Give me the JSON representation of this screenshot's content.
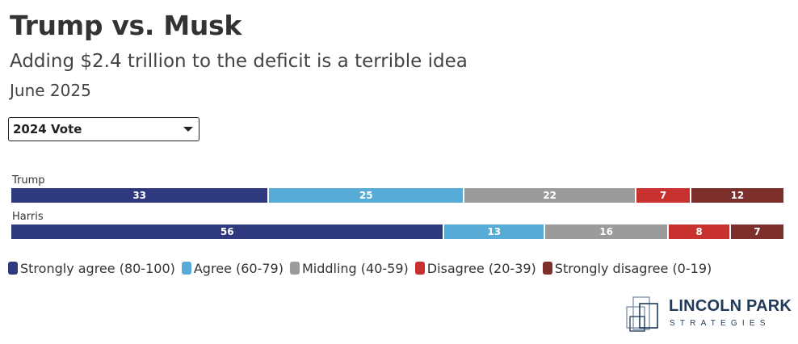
{
  "header": {
    "title": "Trump vs. Musk",
    "subtitle": "Adding $2.4 trillion to the deficit is a terrible idea",
    "date": "June 2025"
  },
  "filter": {
    "selected": "2024 Vote"
  },
  "chart_data": {
    "type": "bar",
    "orientation": "horizontal-stacked-100",
    "categories": [
      "Trump",
      "Harris"
    ],
    "series": [
      {
        "name": "Strongly agree (80-100)",
        "color": "#2f3a7e",
        "values": [
          33,
          56
        ]
      },
      {
        "name": "Agree (60-79)",
        "color": "#56acd6",
        "values": [
          25,
          13
        ]
      },
      {
        "name": "Middling (40-59)",
        "color": "#9b9b9b",
        "values": [
          22,
          16
        ]
      },
      {
        "name": "Disagree (20-39)",
        "color": "#c7312f",
        "values": [
          7,
          8
        ]
      },
      {
        "name": "Strongly disagree (0-19)",
        "color": "#7d2f2c",
        "values": [
          12,
          7
        ]
      }
    ],
    "legend_position": "bottom-left",
    "grid": false
  },
  "logo": {
    "name": "LINCOLN PARK",
    "sub": "STRATEGIES"
  },
  "colors": {
    "text": "#333333",
    "logo": "#1f3a5a"
  }
}
